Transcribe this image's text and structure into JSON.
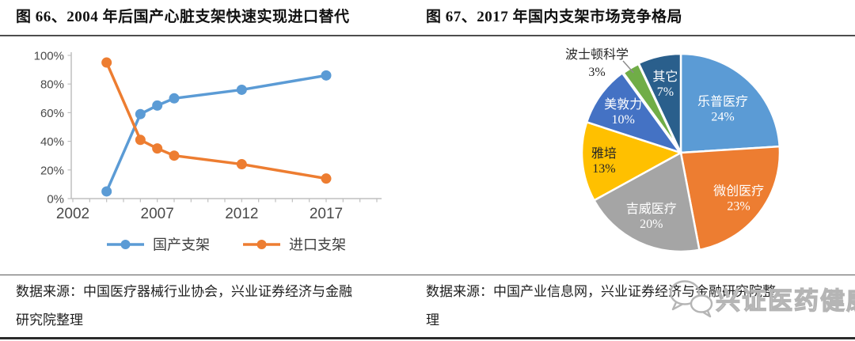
{
  "left_panel": {
    "title": "图 66、2004 年后国产心脏支架快速实现进口替代",
    "source_line1": "数据来源：中国医疗器械行业协会，兴业证券经济与金融",
    "source_line2": "研究院整理"
  },
  "right_panel": {
    "title": "图 67、2017 年国内支架市场竞争格局",
    "source_line1": "数据来源：中国产业信息网，兴业证券经济与金融研究院整",
    "source_line2": "理"
  },
  "watermark": {
    "text": "兴证医药健康",
    "icon": "wechat-chat-bubbles-icon",
    "color": "#b5b5b5"
  },
  "chart_data": [
    {
      "type": "line",
      "title": "图 66、2004 年后国产心脏支架快速实现进口替代",
      "x": [
        2004,
        2006,
        2007,
        2008,
        2012,
        2017
      ],
      "series": [
        {
          "name": "国产支架",
          "color": "#5B9BD5",
          "values": [
            5,
            59,
            65,
            70,
            76,
            86
          ]
        },
        {
          "name": "进口支架",
          "color": "#ED7D31",
          "values": [
            95,
            41,
            35,
            30,
            24,
            14
          ]
        }
      ],
      "xlim": [
        2002,
        2020
      ],
      "ylim": [
        0,
        100
      ],
      "ytick_step": 20,
      "ytick_labels": [
        "0%",
        "20%",
        "40%",
        "60%",
        "80%",
        "100%"
      ],
      "xtick_labels": [
        "2002",
        "2007",
        "2012",
        "2017"
      ],
      "minor_xticks_every_year": true,
      "grid": false,
      "legend_position": "bottom",
      "axis_color": "#bfbfbf"
    },
    {
      "type": "pie",
      "title": "图 67、2017 年国内支架市场竞争格局",
      "start_angle_deg": 0,
      "direction": "clockwise",
      "slices": [
        {
          "label": "乐普医疗",
          "value": 24,
          "color": "#5B9BD5",
          "text_color": "#ffffff"
        },
        {
          "label": "微创医疗",
          "value": 23,
          "color": "#ED7D31",
          "text_color": "#ffffff"
        },
        {
          "label": "吉威医疗",
          "value": 20,
          "color": "#A5A5A5",
          "text_color": "#ffffff"
        },
        {
          "label": "雅培",
          "value": 13,
          "color": "#FFC000",
          "text_color": "#262626"
        },
        {
          "label": "美敦力",
          "value": 10,
          "color": "#4472C4",
          "text_color": "#ffffff"
        },
        {
          "label": "波士顿科学",
          "value": 3,
          "color": "#70AD47",
          "text_color": "#262626",
          "label_outside": true
        },
        {
          "label": "其它",
          "value": 7,
          "color": "#2A5F8C",
          "text_color": "#ffffff"
        }
      ]
    }
  ]
}
